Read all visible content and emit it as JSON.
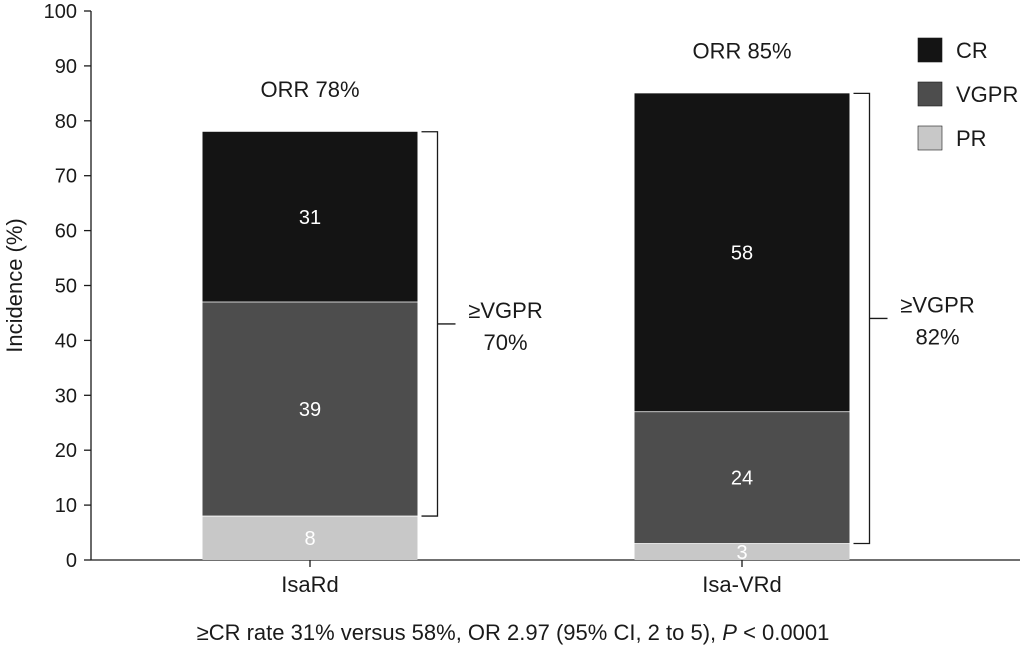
{
  "chart_data": {
    "type": "bar",
    "stacked": true,
    "ylabel": "Incidence (%)",
    "ylim": [
      0,
      100
    ],
    "yticks": [
      0,
      10,
      20,
      30,
      40,
      50,
      60,
      70,
      80,
      90,
      100
    ],
    "categories": [
      "IsaRd",
      "Isa-VRd"
    ],
    "series": [
      {
        "name": "PR",
        "values": [
          8,
          3
        ],
        "color": "#c8c8c8"
      },
      {
        "name": "VGPR",
        "values": [
          39,
          24
        ],
        "color": "#4d4d4d"
      },
      {
        "name": "CR",
        "values": [
          31,
          58
        ],
        "color": "#141414"
      }
    ],
    "legend_order": [
      "CR",
      "VGPR",
      "PR"
    ],
    "legend_position": "top-right",
    "grid": false,
    "totals": [
      {
        "category": "IsaRd",
        "label": "ORR 78%",
        "value": 78
      },
      {
        "category": "Isa-VRd",
        "label": "ORR 85%",
        "value": 85
      }
    ],
    "brackets": [
      {
        "category": "IsaRd",
        "from": 8,
        "to": 78,
        "label_line1": "≥VGPR",
        "label_line2": "70%"
      },
      {
        "category": "Isa-VRd",
        "from": 3,
        "to": 85,
        "label_line1": "≥VGPR",
        "label_line2": "82%"
      }
    ]
  },
  "caption": {
    "main": "≥CR rate 31% versus 58%, OR 2.97 (95% CI, 2 to 5), ",
    "p_symbol": "P",
    "p_value": " < 0.0001"
  }
}
